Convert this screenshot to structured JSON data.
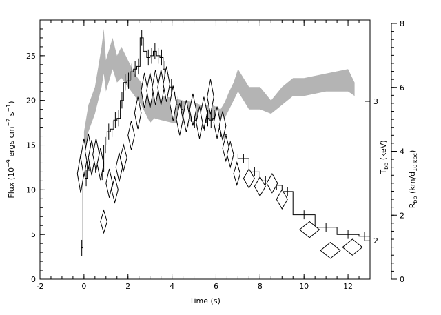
{
  "chart_data": {
    "type": "line",
    "xlabel": "Time (s)",
    "ylabel_left": "Flux (10^-9 ergs cm^-2 s^-1)",
    "ylabel_right_temp": "T_bb (keV)",
    "ylabel_right_radius": "R_bb (km/d_10 kpc)",
    "xlim": [
      -2,
      13
    ],
    "ylim_flux": [
      0,
      29
    ],
    "xticks": [
      -2,
      0,
      2,
      4,
      6,
      8,
      10,
      12
    ],
    "yticks_flux": [
      0,
      5,
      10,
      15,
      20,
      25
    ],
    "temp_axis": {
      "ticks": [
        2,
        3
      ],
      "label_positions_flux": [
        4.3,
        19.9
      ]
    },
    "radius_axis": {
      "ylim": [
        0,
        8
      ],
      "ticks": [
        0,
        2,
        4,
        6,
        8
      ]
    },
    "series": [
      {
        "name": "flux",
        "style": "histogram",
        "edges": [
          -0.15,
          -0.05,
          0.05,
          0.15,
          0.3,
          0.45,
          0.6,
          0.75,
          0.9,
          1.05,
          1.2,
          1.35,
          1.5,
          1.65,
          1.8,
          1.95,
          2.1,
          2.25,
          2.4,
          2.55,
          2.7,
          2.85,
          3.0,
          3.15,
          3.3,
          3.45,
          3.6,
          3.75,
          3.9,
          4.05,
          4.2,
          4.35,
          4.5,
          4.65,
          4.8,
          4.95,
          5.1,
          5.25,
          5.4,
          5.55,
          5.7,
          5.85,
          6.0,
          6.15,
          6.3,
          6.5,
          7.0,
          7.5,
          8.0,
          8.5,
          9.0,
          9.5,
          10.5,
          11.5,
          12.5,
          13.0
        ],
        "values": [
          3.5,
          14.0,
          11.3,
          13.0,
          13.5,
          12.8,
          13.0,
          12.0,
          15.0,
          16.5,
          16.8,
          17.8,
          18.0,
          20.0,
          22.0,
          22.2,
          23.2,
          23.5,
          23.8,
          27.0,
          25.5,
          24.8,
          25.0,
          25.5,
          25.0,
          24.8,
          23.5,
          22.0,
          21.5,
          20.0,
          19.5,
          19.0,
          18.5,
          18.0,
          18.5,
          17.8,
          18.0,
          17.8,
          17.5,
          18.0,
          17.8,
          18.0,
          17.5,
          16.8,
          16.2,
          14.0,
          13.5,
          12.0,
          11.0,
          10.5,
          9.8,
          7.2,
          5.8,
          5.0,
          4.8
        ]
      },
      {
        "name": "temperature",
        "style": "band",
        "x": [
          0.0,
          0.2,
          0.5,
          0.8,
          0.9,
          1.0,
          1.3,
          1.5,
          1.7,
          2.0,
          2.3,
          2.6,
          2.8,
          3.0,
          3.2,
          3.5,
          4.0,
          4.5,
          5.0,
          5.3,
          5.5,
          5.8,
          6.0,
          6.2,
          6.4,
          6.6,
          6.8,
          7.0,
          7.5,
          8.0,
          8.5,
          9.0,
          9.5,
          10.0,
          11.0,
          12.0,
          12.3
        ],
        "upper": [
          16.5,
          19.5,
          21.5,
          26.0,
          28.0,
          24.5,
          27.0,
          25.0,
          26.0,
          24.5,
          23.0,
          22.0,
          21.5,
          20.5,
          21.0,
          20.5,
          20.3,
          20.0,
          19.8,
          19.5,
          19.5,
          19.5,
          19.3,
          19.0,
          19.8,
          21.0,
          22.0,
          23.5,
          21.5,
          21.5,
          20.0,
          21.5,
          22.5,
          22.5,
          23.0,
          23.5,
          22.0
        ],
        "lower": [
          13.5,
          16.5,
          18.5,
          21.5,
          23.0,
          21.0,
          23.5,
          22.0,
          22.5,
          21.5,
          20.5,
          19.5,
          18.5,
          17.5,
          18.0,
          17.8,
          17.5,
          17.5,
          17.8,
          17.5,
          17.8,
          17.8,
          17.8,
          17.5,
          18.0,
          19.0,
          20.0,
          21.0,
          19.0,
          19.0,
          18.5,
          19.5,
          20.5,
          20.5,
          21.0,
          21.0,
          20.5
        ]
      },
      {
        "name": "radius",
        "style": "diamonds",
        "points": [
          [
            -0.15,
            3.3,
            0.15,
            0.6
          ],
          [
            0.0,
            3.8,
            0.15,
            0.6
          ],
          [
            0.2,
            4.0,
            0.15,
            0.55
          ],
          [
            0.35,
            3.8,
            0.15,
            0.55
          ],
          [
            0.55,
            3.9,
            0.15,
            0.5
          ],
          [
            0.75,
            3.6,
            0.15,
            0.5
          ],
          [
            0.9,
            1.8,
            0.15,
            0.35
          ],
          [
            1.15,
            3.0,
            0.15,
            0.45
          ],
          [
            1.4,
            2.8,
            0.15,
            0.4
          ],
          [
            1.6,
            3.5,
            0.15,
            0.45
          ],
          [
            1.8,
            3.8,
            0.15,
            0.4
          ],
          [
            2.15,
            4.5,
            0.15,
            0.45
          ],
          [
            2.45,
            5.2,
            0.15,
            0.5
          ],
          [
            2.75,
            5.9,
            0.15,
            0.55
          ],
          [
            3.0,
            5.9,
            0.15,
            0.55
          ],
          [
            3.25,
            6.0,
            0.15,
            0.55
          ],
          [
            3.5,
            6.0,
            0.15,
            0.55
          ],
          [
            3.75,
            6.1,
            0.15,
            0.55
          ],
          [
            4.05,
            5.5,
            0.15,
            0.55
          ],
          [
            4.35,
            5.0,
            0.15,
            0.5
          ],
          [
            4.65,
            5.1,
            0.15,
            0.5
          ],
          [
            4.95,
            5.3,
            0.15,
            0.5
          ],
          [
            5.25,
            4.9,
            0.15,
            0.5
          ],
          [
            5.45,
            5.2,
            0.15,
            0.5
          ],
          [
            5.75,
            5.7,
            0.15,
            0.55
          ],
          [
            6.05,
            4.9,
            0.15,
            0.5
          ],
          [
            6.3,
            4.8,
            0.15,
            0.45
          ],
          [
            6.45,
            4.1,
            0.15,
            0.4
          ],
          [
            6.65,
            3.9,
            0.15,
            0.4
          ],
          [
            6.95,
            3.3,
            0.15,
            0.35
          ],
          [
            7.5,
            3.15,
            0.25,
            0.3
          ],
          [
            8.0,
            2.9,
            0.25,
            0.3
          ],
          [
            8.55,
            3.0,
            0.25,
            0.3
          ],
          [
            9.0,
            2.5,
            0.25,
            0.3
          ],
          [
            10.25,
            1.55,
            0.45,
            0.25
          ],
          [
            11.2,
            0.9,
            0.45,
            0.25
          ],
          [
            12.2,
            1.0,
            0.45,
            0.25
          ]
        ]
      }
    ]
  }
}
